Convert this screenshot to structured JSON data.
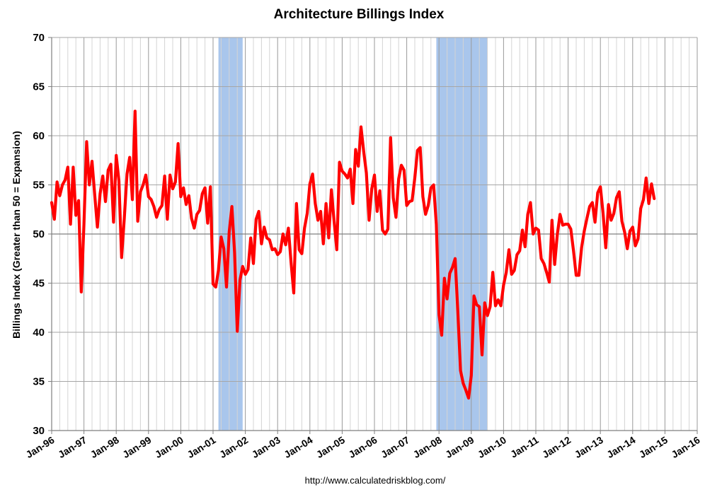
{
  "chart_data": {
    "type": "line",
    "title": "Architecture Billings Index",
    "ylabel": "Billings Index (Greater than 50 = Expansion)",
    "xlabel": "",
    "source": "http://www.calculatedriskblog.com/",
    "ylim": [
      30,
      70
    ],
    "yticks": [
      30,
      35,
      40,
      45,
      50,
      55,
      60,
      65,
      70
    ],
    "xlim": [
      "1996-01",
      "2016-01"
    ],
    "xticks": [
      "Jan-96",
      "Jan-97",
      "Jan-98",
      "Jan-99",
      "Jan-00",
      "Jan-01",
      "Jan-02",
      "Jan-03",
      "Jan-04",
      "Jan-05",
      "Jan-06",
      "Jan-07",
      "Jan-08",
      "Jan-09",
      "Jan-10",
      "Jan-11",
      "Jan-12",
      "Jan-13",
      "Jan-14",
      "Jan-15",
      "Jan-16"
    ],
    "grid": true,
    "reference_line": 50,
    "recessions": [
      {
        "start": "2001-03",
        "end": "2001-11"
      },
      {
        "start": "2007-12",
        "end": "2009-06"
      }
    ],
    "colors": {
      "line": "#ff0000",
      "recession": "#a9c6ec",
      "grid": "#a6a6a6",
      "reference": "#7f7f7f"
    },
    "series": [
      {
        "start": "1996-01",
        "frequency": "monthly",
        "values": [
          53.2,
          51.5,
          55.3,
          53.9,
          55.0,
          55.5,
          56.8,
          51.0,
          56.8,
          51.9,
          53.4,
          44.1,
          51.0,
          59.4,
          55.0,
          57.4,
          54.0,
          50.7,
          54.1,
          55.9,
          53.3,
          56.5,
          57.1,
          51.2,
          58.0,
          55.4,
          47.6,
          51.6,
          56.1,
          57.8,
          53.5,
          62.5,
          51.3,
          54.3,
          55.0,
          56.0,
          53.8,
          53.5,
          52.8,
          51.7,
          52.5,
          52.9,
          55.9,
          51.5,
          56.0,
          54.6,
          55.3,
          59.2,
          53.8,
          54.7,
          53.0,
          53.9,
          51.6,
          50.6,
          52.0,
          52.4,
          54.1,
          54.7,
          51.1,
          54.8,
          44.9,
          44.6,
          46.3,
          49.7,
          48.5,
          44.6,
          50.2,
          52.8,
          48.1,
          40.1,
          45.3,
          46.7,
          45.9,
          46.4,
          49.6,
          47.0,
          51.5,
          52.3,
          49.0,
          50.7,
          49.6,
          49.4,
          48.4,
          48.5,
          47.9,
          48.2,
          50.0,
          48.9,
          50.6,
          47.1,
          44.0,
          53.1,
          48.4,
          48.0,
          50.6,
          52.1,
          55.1,
          56.1,
          53.1,
          51.4,
          52.3,
          49.0,
          53.1,
          49.6,
          54.5,
          51.3,
          48.4,
          57.3,
          56.4,
          56.1,
          55.7,
          56.6,
          53.1,
          58.6,
          56.9,
          60.9,
          58.4,
          56.2,
          51.4,
          54.6,
          56.0,
          52.3,
          54.4,
          50.4,
          50.0,
          50.5,
          59.8,
          53.7,
          51.7,
          55.6,
          57.0,
          56.5,
          52.9,
          53.3,
          53.4,
          55.7,
          58.5,
          58.8,
          53.8,
          52.0,
          52.9,
          54.7,
          55.0,
          51.0,
          41.8,
          39.7,
          45.5,
          43.4,
          46.0,
          46.6,
          47.5,
          42.1,
          36.1,
          34.8,
          34.1,
          33.3,
          35.6,
          43.7,
          42.8,
          42.6,
          37.7,
          43.0,
          41.7,
          42.6,
          46.1,
          42.7,
          43.3,
          42.7,
          44.8,
          46.1,
          48.4,
          45.9,
          46.3,
          47.9,
          48.3,
          50.4,
          48.7,
          52.0,
          53.2,
          50.0,
          50.6,
          50.4,
          47.5,
          47.0,
          46.1,
          45.1,
          51.4,
          46.9,
          50.0,
          52.0,
          50.9,
          51.0,
          51.0,
          50.5,
          48.3,
          45.8,
          45.8,
          48.6,
          50.3,
          51.6,
          52.8,
          53.2,
          51.2,
          54.2,
          54.8,
          52.1,
          48.6,
          53.0,
          51.4,
          52.1,
          53.7,
          54.3,
          51.3,
          50.2,
          48.5,
          50.3,
          50.7,
          48.8,
          49.5,
          52.6,
          53.5,
          55.7,
          53.1,
          55.1,
          53.6
        ]
      }
    ]
  }
}
